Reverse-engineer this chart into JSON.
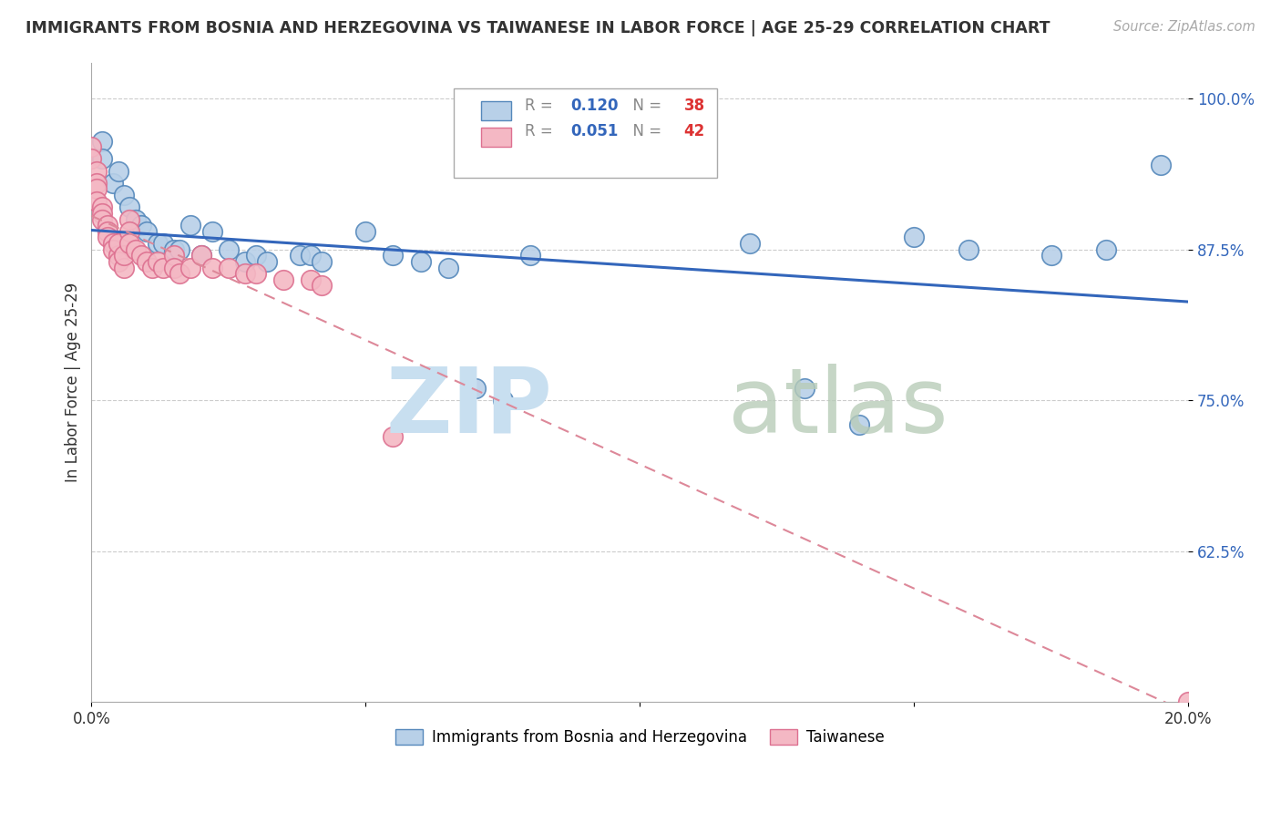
{
  "title": "IMMIGRANTS FROM BOSNIA AND HERZEGOVINA VS TAIWANESE IN LABOR FORCE | AGE 25-29 CORRELATION CHART",
  "source": "Source: ZipAtlas.com",
  "ylabel": "In Labor Force | Age 25-29",
  "xlim": [
    0.0,
    0.2
  ],
  "ylim": [
    0.5,
    1.03
  ],
  "yticks": [
    0.625,
    0.75,
    0.875,
    1.0
  ],
  "ytick_labels": [
    "62.5%",
    "75.0%",
    "87.5%",
    "100.0%"
  ],
  "xtick_labels": [
    "0.0%",
    "20.0%"
  ],
  "legend_blue_label": "Immigrants from Bosnia and Herzegovina",
  "legend_pink_label": "Taiwanese",
  "r_blue": 0.12,
  "n_blue": 38,
  "r_pink": 0.051,
  "n_pink": 42,
  "blue_color": "#b8d0e8",
  "blue_edge": "#5588bb",
  "pink_color": "#f4b8c4",
  "pink_edge": "#dd7090",
  "blue_line_color": "#3366bb",
  "pink_line_color": "#dd8899",
  "watermark_zip_color": "#c8dff0",
  "watermark_atlas_color": "#b8ccb8",
  "blue_x": [
    0.002,
    0.002,
    0.004,
    0.005,
    0.006,
    0.007,
    0.008,
    0.009,
    0.01,
    0.012,
    0.013,
    0.015,
    0.016,
    0.018,
    0.02,
    0.022,
    0.025,
    0.028,
    0.03,
    0.032,
    0.038,
    0.04,
    0.042,
    0.05,
    0.055,
    0.06,
    0.065,
    0.07,
    0.075,
    0.08,
    0.12,
    0.13,
    0.14,
    0.15,
    0.16,
    0.175,
    0.185,
    0.195
  ],
  "blue_y": [
    0.965,
    0.95,
    0.93,
    0.94,
    0.92,
    0.91,
    0.9,
    0.895,
    0.89,
    0.88,
    0.88,
    0.875,
    0.875,
    0.895,
    0.87,
    0.89,
    0.875,
    0.865,
    0.87,
    0.865,
    0.87,
    0.87,
    0.865,
    0.89,
    0.87,
    0.865,
    0.86,
    0.76,
    0.75,
    0.87,
    0.88,
    0.76,
    0.73,
    0.885,
    0.875,
    0.87,
    0.875,
    0.945
  ],
  "pink_x": [
    0.0,
    0.0,
    0.001,
    0.001,
    0.001,
    0.001,
    0.002,
    0.002,
    0.002,
    0.003,
    0.003,
    0.003,
    0.004,
    0.004,
    0.005,
    0.005,
    0.005,
    0.006,
    0.006,
    0.007,
    0.007,
    0.007,
    0.008,
    0.009,
    0.01,
    0.011,
    0.012,
    0.013,
    0.015,
    0.015,
    0.016,
    0.018,
    0.02,
    0.022,
    0.025,
    0.028,
    0.03,
    0.035,
    0.04,
    0.042,
    0.055,
    0.2
  ],
  "pink_y": [
    0.96,
    0.95,
    0.94,
    0.93,
    0.925,
    0.915,
    0.91,
    0.905,
    0.9,
    0.895,
    0.89,
    0.885,
    0.88,
    0.875,
    0.87,
    0.88,
    0.865,
    0.86,
    0.87,
    0.9,
    0.89,
    0.88,
    0.875,
    0.87,
    0.865,
    0.86,
    0.865,
    0.86,
    0.87,
    0.86,
    0.855,
    0.86,
    0.87,
    0.86,
    0.86,
    0.855,
    0.855,
    0.85,
    0.85,
    0.845,
    0.72,
    0.5
  ]
}
